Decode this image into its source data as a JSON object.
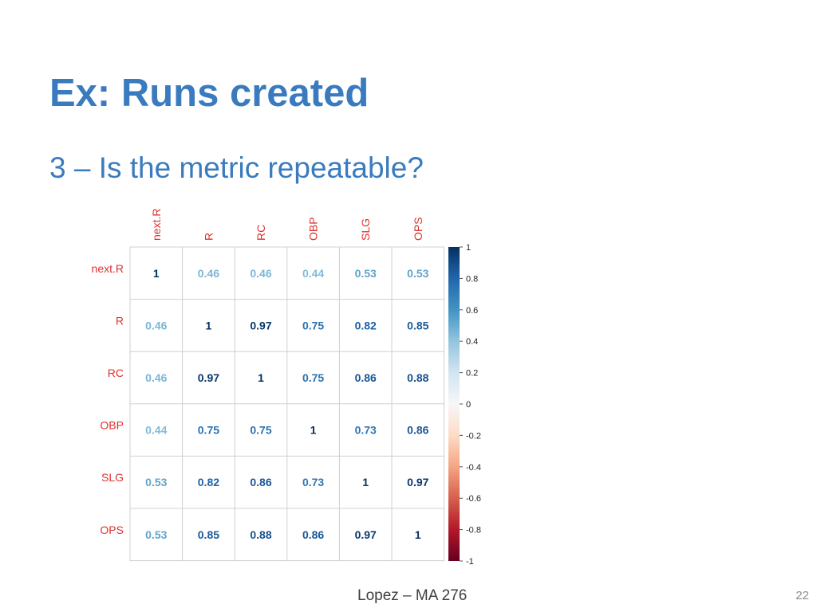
{
  "slide": {
    "title": "Ex: Runs created",
    "subtitle": "3 – Is the metric repeatable?",
    "footer": "Lopez – MA 276",
    "page_number": "22"
  },
  "chart_data": {
    "type": "heatmap",
    "labels": [
      "next.R",
      "R",
      "RC",
      "OBP",
      "SLG",
      "OPS"
    ],
    "matrix": [
      [
        1,
        0.46,
        0.46,
        0.44,
        0.53,
        0.53
      ],
      [
        0.46,
        1,
        0.97,
        0.75,
        0.82,
        0.85
      ],
      [
        0.46,
        0.97,
        1,
        0.75,
        0.86,
        0.88
      ],
      [
        0.44,
        0.75,
        0.75,
        1,
        0.73,
        0.86
      ],
      [
        0.53,
        0.82,
        0.86,
        0.73,
        1,
        0.97
      ],
      [
        0.53,
        0.85,
        0.88,
        0.86,
        0.97,
        1
      ]
    ],
    "value_range": [
      -1,
      1
    ],
    "colorbar_ticks": [
      1,
      0.8,
      0.6,
      0.4,
      0.2,
      0,
      -0.2,
      -0.4,
      -0.6,
      -0.8,
      -1
    ],
    "label_color": "#e0312f",
    "grid": true,
    "legend_placement": "right",
    "colorscale": [
      "#67001f",
      "#b2182b",
      "#d6604d",
      "#f4a582",
      "#fddbc7",
      "#f7f7f7",
      "#d1e5f0",
      "#92c5de",
      "#4393c3",
      "#2166ac",
      "#053061"
    ]
  }
}
